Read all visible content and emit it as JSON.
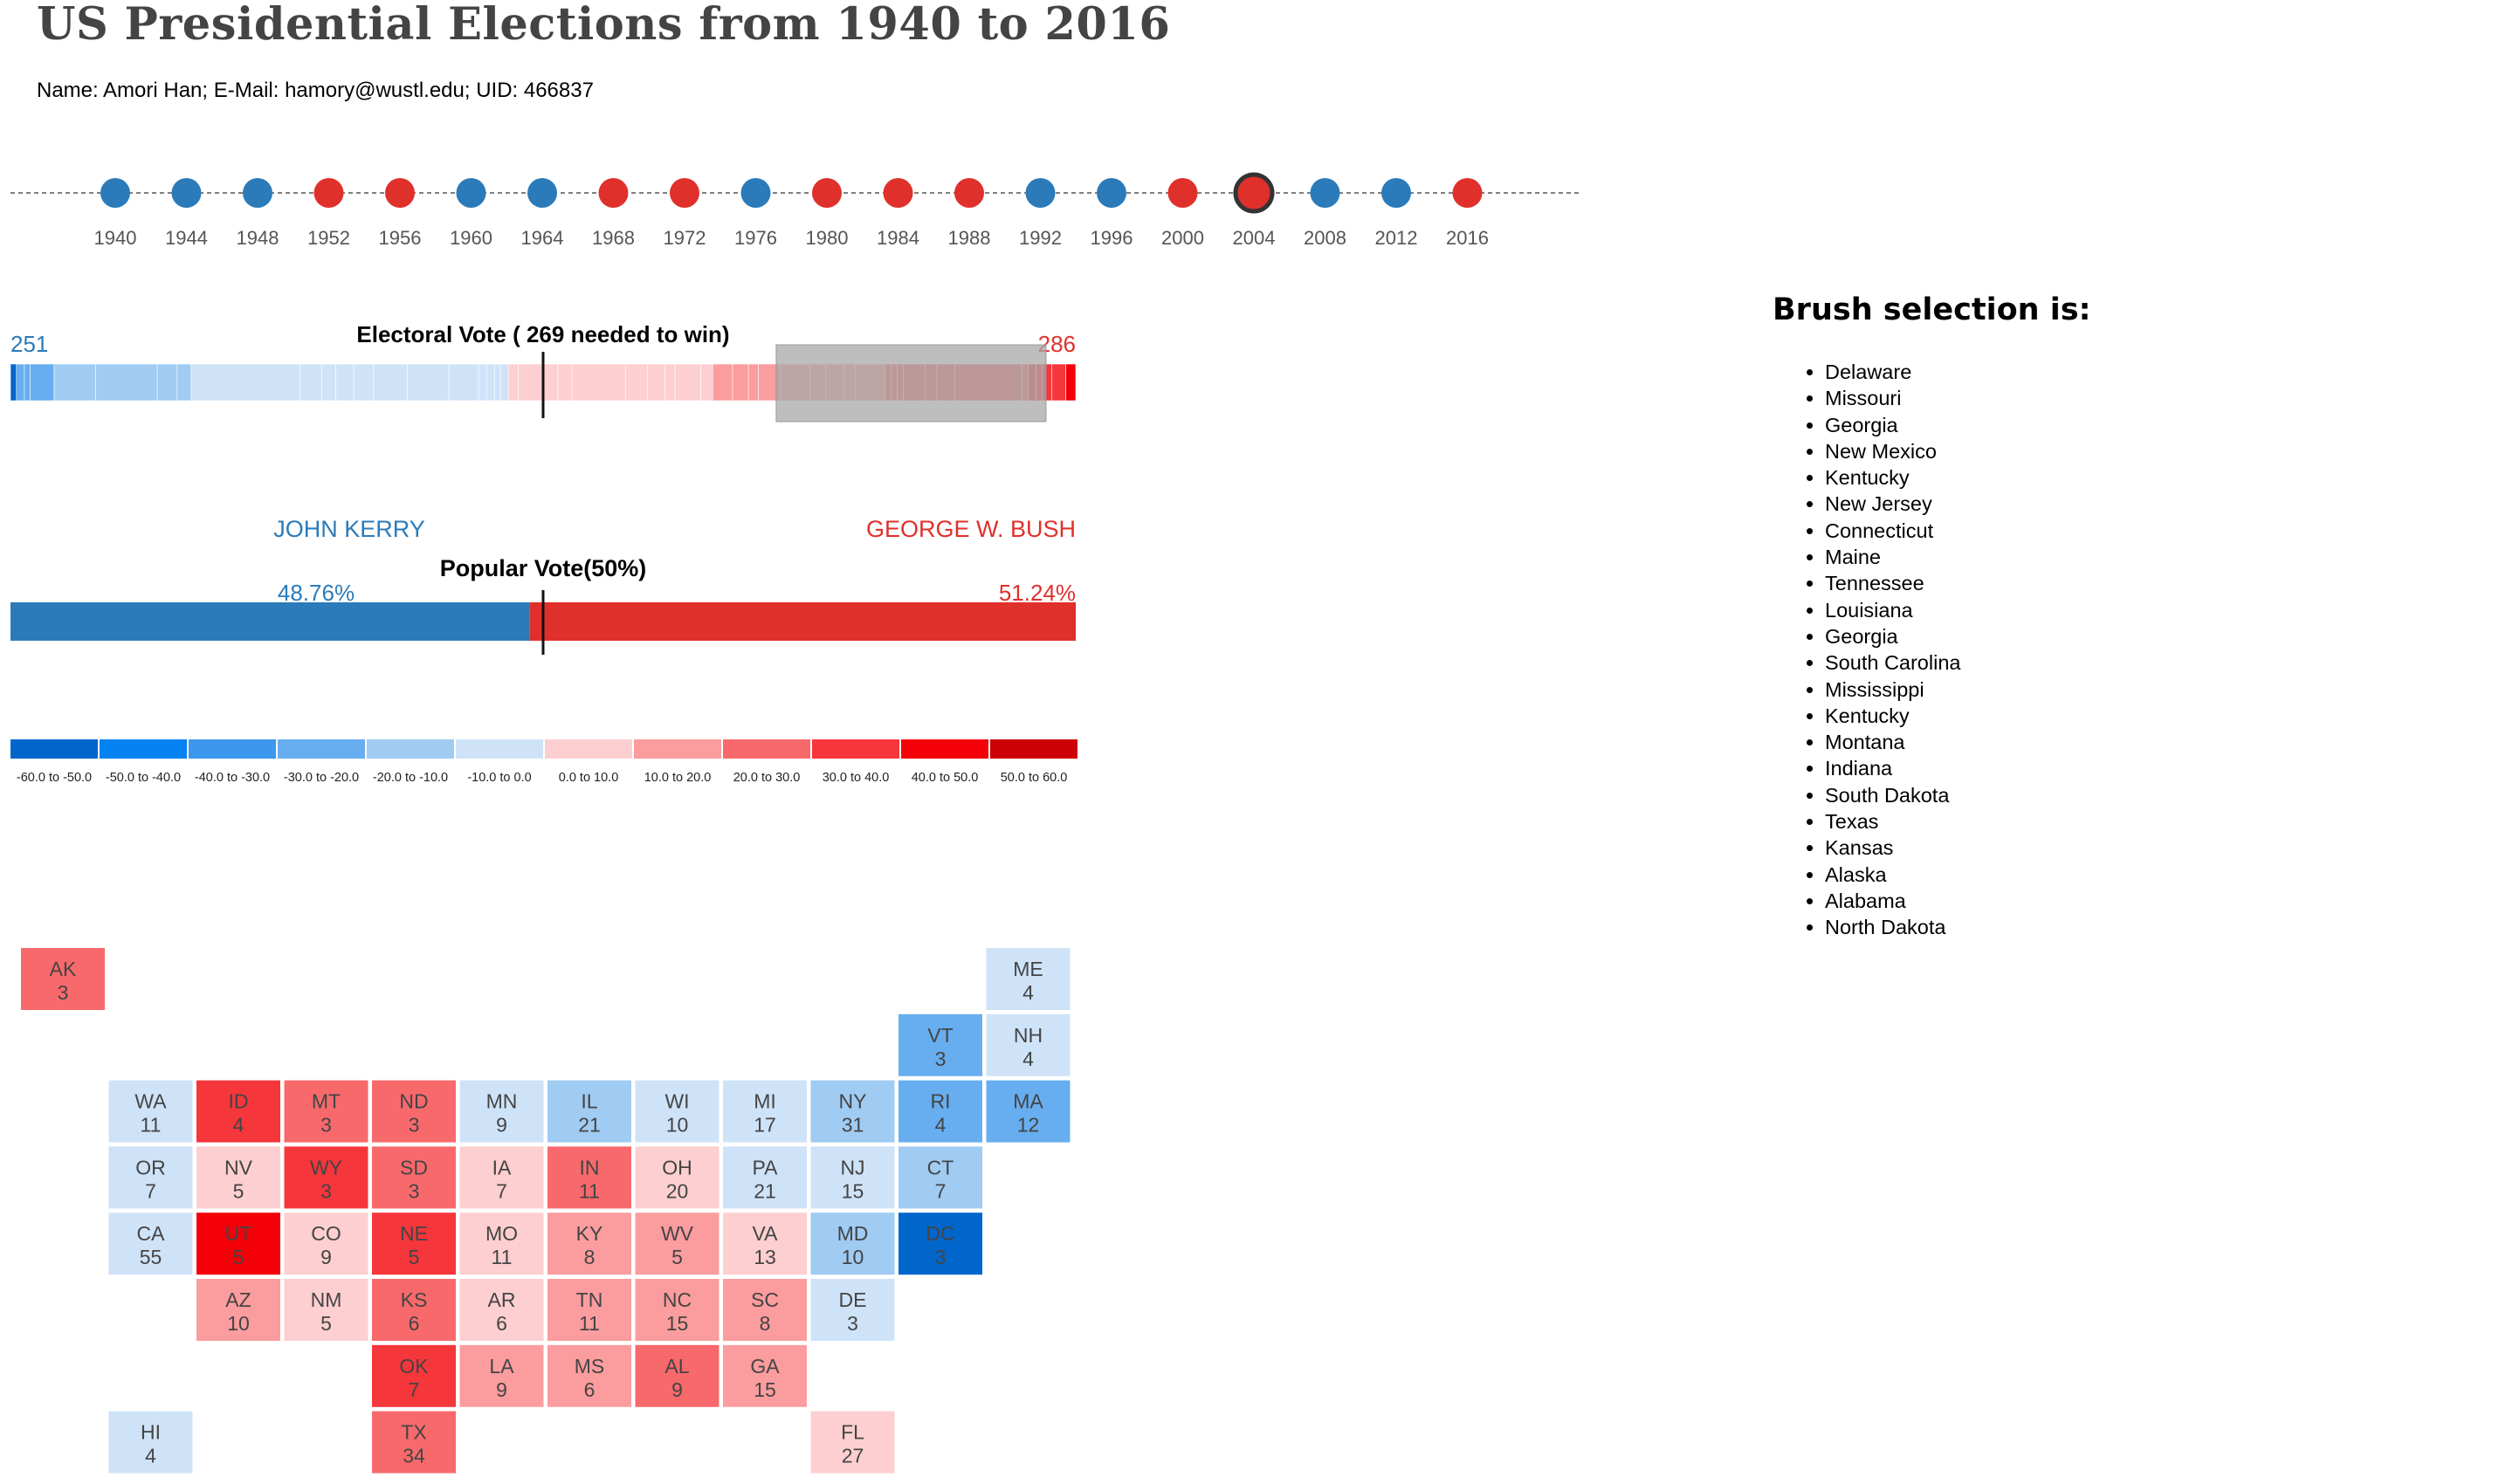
{
  "title": "US Presidential Elections from 1940 to 2016",
  "student_info": "Name: Amori Han; E-Mail: hamory@wustl.edu; UID: 466837",
  "colors": {
    "dem": "#2b7bba",
    "rep": "#e0302b",
    "selected_outline": "#333333"
  },
  "years": [
    {
      "year": "1940",
      "party": "D"
    },
    {
      "year": "1944",
      "party": "D"
    },
    {
      "year": "1948",
      "party": "D"
    },
    {
      "year": "1952",
      "party": "R"
    },
    {
      "year": "1956",
      "party": "R"
    },
    {
      "year": "1960",
      "party": "D"
    },
    {
      "year": "1964",
      "party": "D"
    },
    {
      "year": "1968",
      "party": "R"
    },
    {
      "year": "1972",
      "party": "R"
    },
    {
      "year": "1976",
      "party": "D"
    },
    {
      "year": "1980",
      "party": "R"
    },
    {
      "year": "1984",
      "party": "R"
    },
    {
      "year": "1988",
      "party": "R"
    },
    {
      "year": "1992",
      "party": "D"
    },
    {
      "year": "1996",
      "party": "D"
    },
    {
      "year": "2000",
      "party": "R"
    },
    {
      "year": "2004",
      "party": "R",
      "selected": true
    },
    {
      "year": "2008",
      "party": "D"
    },
    {
      "year": "2012",
      "party": "D"
    },
    {
      "year": "2016",
      "party": "R"
    }
  ],
  "electoral": {
    "title": "Electoral Vote ( 269 needed to win)",
    "dem_total": "251",
    "rep_total": "286",
    "dem_total_value": 251,
    "rep_total_value": 286,
    "total": 537,
    "needed": 269,
    "brush_range_votes": [
      386,
      522
    ]
  },
  "popular": {
    "title": "Popular Vote(50%)",
    "dem_candidate": "JOHN KERRY",
    "rep_candidate": "GEORGE W. BUSH",
    "dem_pct": "48.76%",
    "rep_pct": "51.24%",
    "dem_value": 48.76
  },
  "legend": [
    {
      "label": "-60.0 to -50.0",
      "color": "#0066cc"
    },
    {
      "label": "-50.0 to -40.0",
      "color": "#0582f2"
    },
    {
      "label": "-40.0 to -30.0",
      "color": "#3c98ed"
    },
    {
      "label": "-30.0 to -20.0",
      "color": "#67aef0"
    },
    {
      "label": "-20.0 to -10.0",
      "color": "#a0cbf3"
    },
    {
      "label": "-10.0 to 0.0",
      "color": "#cfe3f8"
    },
    {
      "label": "0.0 to 10.0",
      "color": "#fdcfd0"
    },
    {
      "label": "10.0 to 20.0",
      "color": "#fb9c9e"
    },
    {
      "label": "20.0 to 30.0",
      "color": "#f8696c"
    },
    {
      "label": "30.0 to 40.0",
      "color": "#f5363b"
    },
    {
      "label": "40.0 to 50.0",
      "color": "#f40008"
    },
    {
      "label": "50.0 to 60.0",
      "color": "#cc0006"
    }
  ],
  "tiles": [
    {
      "abbr": "AK",
      "ev": "3",
      "row": 0,
      "col": 0,
      "bin": 8
    },
    {
      "abbr": "ME",
      "ev": "4",
      "row": 0,
      "col": 11,
      "bin": 5
    },
    {
      "abbr": "VT",
      "ev": "3",
      "row": 1,
      "col": 10,
      "bin": 3
    },
    {
      "abbr": "NH",
      "ev": "4",
      "row": 1,
      "col": 11,
      "bin": 5
    },
    {
      "abbr": "WA",
      "ev": "11",
      "row": 2,
      "col": 1,
      "bin": 5
    },
    {
      "abbr": "ID",
      "ev": "4",
      "row": 2,
      "col": 2,
      "bin": 9
    },
    {
      "abbr": "MT",
      "ev": "3",
      "row": 2,
      "col": 3,
      "bin": 8
    },
    {
      "abbr": "ND",
      "ev": "3",
      "row": 2,
      "col": 4,
      "bin": 8
    },
    {
      "abbr": "MN",
      "ev": "9",
      "row": 2,
      "col": 5,
      "bin": 5
    },
    {
      "abbr": "IL",
      "ev": "21",
      "row": 2,
      "col": 6,
      "bin": 4
    },
    {
      "abbr": "WI",
      "ev": "10",
      "row": 2,
      "col": 7,
      "bin": 5
    },
    {
      "abbr": "MI",
      "ev": "17",
      "row": 2,
      "col": 8,
      "bin": 5
    },
    {
      "abbr": "NY",
      "ev": "31",
      "row": 2,
      "col": 9,
      "bin": 4
    },
    {
      "abbr": "RI",
      "ev": "4",
      "row": 2,
      "col": 10,
      "bin": 3
    },
    {
      "abbr": "MA",
      "ev": "12",
      "row": 2,
      "col": 11,
      "bin": 3
    },
    {
      "abbr": "OR",
      "ev": "7",
      "row": 3,
      "col": 1,
      "bin": 5
    },
    {
      "abbr": "NV",
      "ev": "5",
      "row": 3,
      "col": 2,
      "bin": 6
    },
    {
      "abbr": "WY",
      "ev": "3",
      "row": 3,
      "col": 3,
      "bin": 9
    },
    {
      "abbr": "SD",
      "ev": "3",
      "row": 3,
      "col": 4,
      "bin": 8
    },
    {
      "abbr": "IA",
      "ev": "7",
      "row": 3,
      "col": 5,
      "bin": 6
    },
    {
      "abbr": "IN",
      "ev": "11",
      "row": 3,
      "col": 6,
      "bin": 8
    },
    {
      "abbr": "OH",
      "ev": "20",
      "row": 3,
      "col": 7,
      "bin": 6
    },
    {
      "abbr": "PA",
      "ev": "21",
      "row": 3,
      "col": 8,
      "bin": 5
    },
    {
      "abbr": "NJ",
      "ev": "15",
      "row": 3,
      "col": 9,
      "bin": 5
    },
    {
      "abbr": "CT",
      "ev": "7",
      "row": 3,
      "col": 10,
      "bin": 4
    },
    {
      "abbr": "CA",
      "ev": "55",
      "row": 4,
      "col": 1,
      "bin": 5
    },
    {
      "abbr": "UT",
      "ev": "5",
      "row": 4,
      "col": 2,
      "bin": 10
    },
    {
      "abbr": "CO",
      "ev": "9",
      "row": 4,
      "col": 3,
      "bin": 6
    },
    {
      "abbr": "NE",
      "ev": "5",
      "row": 4,
      "col": 4,
      "bin": 9
    },
    {
      "abbr": "MO",
      "ev": "11",
      "row": 4,
      "col": 5,
      "bin": 6
    },
    {
      "abbr": "KY",
      "ev": "8",
      "row": 4,
      "col": 6,
      "bin": 7
    },
    {
      "abbr": "WV",
      "ev": "5",
      "row": 4,
      "col": 7,
      "bin": 7
    },
    {
      "abbr": "VA",
      "ev": "13",
      "row": 4,
      "col": 8,
      "bin": 6
    },
    {
      "abbr": "MD",
      "ev": "10",
      "row": 4,
      "col": 9,
      "bin": 4
    },
    {
      "abbr": "DC",
      "ev": "3",
      "row": 4,
      "col": 10,
      "bin": 0
    },
    {
      "abbr": "AZ",
      "ev": "10",
      "row": 5,
      "col": 2,
      "bin": 7
    },
    {
      "abbr": "NM",
      "ev": "5",
      "row": 5,
      "col": 3,
      "bin": 6
    },
    {
      "abbr": "KS",
      "ev": "6",
      "row": 5,
      "col": 4,
      "bin": 8
    },
    {
      "abbr": "AR",
      "ev": "6",
      "row": 5,
      "col": 5,
      "bin": 6
    },
    {
      "abbr": "TN",
      "ev": "11",
      "row": 5,
      "col": 6,
      "bin": 7
    },
    {
      "abbr": "NC",
      "ev": "15",
      "row": 5,
      "col": 7,
      "bin": 7
    },
    {
      "abbr": "SC",
      "ev": "8",
      "row": 5,
      "col": 8,
      "bin": 7
    },
    {
      "abbr": "DE",
      "ev": "3",
      "row": 5,
      "col": 9,
      "bin": 5
    },
    {
      "abbr": "OK",
      "ev": "7",
      "row": 6,
      "col": 4,
      "bin": 9
    },
    {
      "abbr": "LA",
      "ev": "9",
      "row": 6,
      "col": 5,
      "bin": 7
    },
    {
      "abbr": "MS",
      "ev": "6",
      "row": 6,
      "col": 6,
      "bin": 7
    },
    {
      "abbr": "AL",
      "ev": "9",
      "row": 6,
      "col": 7,
      "bin": 8
    },
    {
      "abbr": "GA",
      "ev": "15",
      "row": 6,
      "col": 8,
      "bin": 7
    },
    {
      "abbr": "HI",
      "ev": "4",
      "row": 7,
      "col": 1,
      "bin": 5
    },
    {
      "abbr": "TX",
      "ev": "34",
      "row": 7,
      "col": 4,
      "bin": 8
    },
    {
      "abbr": "FL",
      "ev": "27",
      "row": 7,
      "col": 9,
      "bin": 6
    }
  ],
  "ev_bar_segments": [
    {
      "ev": 3,
      "bin": 0
    },
    {
      "ev": 4,
      "bin": 3
    },
    {
      "ev": 3,
      "bin": 3
    },
    {
      "ev": 12,
      "bin": 3
    },
    {
      "ev": 21,
      "bin": 4
    },
    {
      "ev": 31,
      "bin": 4
    },
    {
      "ev": 10,
      "bin": 4
    },
    {
      "ev": 7,
      "bin": 4
    },
    {
      "ev": 55,
      "bin": 5
    },
    {
      "ev": 11,
      "bin": 5
    },
    {
      "ev": 7,
      "bin": 5
    },
    {
      "ev": 9,
      "bin": 5
    },
    {
      "ev": 10,
      "bin": 5
    },
    {
      "ev": 17,
      "bin": 5
    },
    {
      "ev": 21,
      "bin": 5
    },
    {
      "ev": 15,
      "bin": 5
    },
    {
      "ev": 4,
      "bin": 5
    },
    {
      "ev": 4,
      "bin": 5
    },
    {
      "ev": 3,
      "bin": 5
    },
    {
      "ev": 4,
      "bin": 5
    },
    {
      "ev": 5,
      "bin": 6
    },
    {
      "ev": 20,
      "bin": 6
    },
    {
      "ev": 7,
      "bin": 6
    },
    {
      "ev": 27,
      "bin": 6
    },
    {
      "ev": 11,
      "bin": 6
    },
    {
      "ev": 9,
      "bin": 6
    },
    {
      "ev": 5,
      "bin": 6
    },
    {
      "ev": 13,
      "bin": 6
    },
    {
      "ev": 6,
      "bin": 6
    },
    {
      "ev": 10,
      "bin": 7
    },
    {
      "ev": 8,
      "bin": 7
    },
    {
      "ev": 5,
      "bin": 7
    },
    {
      "ev": 11,
      "bin": 7
    },
    {
      "ev": 15,
      "bin": 7
    },
    {
      "ev": 8,
      "bin": 7
    },
    {
      "ev": 9,
      "bin": 7
    },
    {
      "ev": 6,
      "bin": 7
    },
    {
      "ev": 15,
      "bin": 7
    },
    {
      "ev": 3,
      "bin": 8
    },
    {
      "ev": 3,
      "bin": 8
    },
    {
      "ev": 3,
      "bin": 8
    },
    {
      "ev": 11,
      "bin": 8
    },
    {
      "ev": 6,
      "bin": 8
    },
    {
      "ev": 9,
      "bin": 8
    },
    {
      "ev": 34,
      "bin": 8
    },
    {
      "ev": 3,
      "bin": 8
    },
    {
      "ev": 4,
      "bin": 9
    },
    {
      "ev": 3,
      "bin": 9
    },
    {
      "ev": 5,
      "bin": 9
    },
    {
      "ev": 7,
      "bin": 9
    },
    {
      "ev": 5,
      "bin": 10
    }
  ],
  "brush": {
    "title": "Brush selection is:",
    "states": [
      "Delaware",
      "Missouri",
      "Georgia",
      "New Mexico",
      "Kentucky",
      "New Jersey",
      "Connecticut",
      "Maine",
      "Tennessee",
      "Louisiana",
      "Georgia",
      "South Carolina",
      "Mississippi",
      "Kentucky",
      "Montana",
      "Indiana",
      "South Dakota",
      "Texas",
      "Kansas",
      "Alaska",
      "Alabama",
      "North Dakota"
    ]
  }
}
